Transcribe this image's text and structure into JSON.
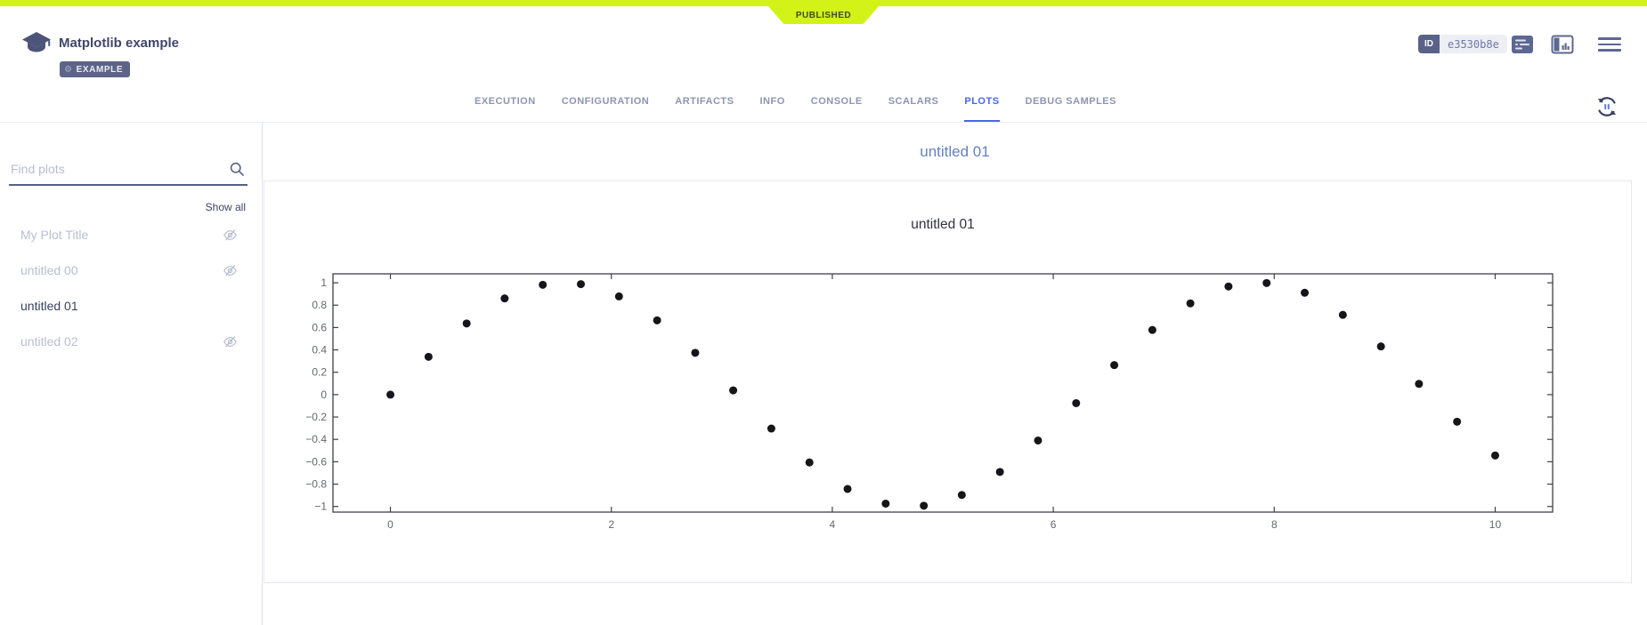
{
  "status_ribbon": {
    "label": "PUBLISHED"
  },
  "header": {
    "title": "Matplotlib example",
    "badge": {
      "label": "EXAMPLE"
    },
    "id_chip": {
      "label": "ID",
      "value": "e3530b8e"
    }
  },
  "tabs": {
    "items": [
      {
        "label": "EXECUTION",
        "active": false
      },
      {
        "label": "CONFIGURATION",
        "active": false
      },
      {
        "label": "ARTIFACTS",
        "active": false
      },
      {
        "label": "INFO",
        "active": false
      },
      {
        "label": "CONSOLE",
        "active": false
      },
      {
        "label": "SCALARS",
        "active": false
      },
      {
        "label": "PLOTS",
        "active": true
      },
      {
        "label": "DEBUG SAMPLES",
        "active": false
      }
    ]
  },
  "sidebar": {
    "search": {
      "placeholder": "Find plots",
      "value": ""
    },
    "show_all_label": "Show all",
    "items": [
      {
        "label": "My Plot Title",
        "hidden": true,
        "active": false
      },
      {
        "label": "untitled 00",
        "hidden": true,
        "active": false
      },
      {
        "label": "untitled 01",
        "hidden": false,
        "active": true
      },
      {
        "label": "untitled 02",
        "hidden": true,
        "active": false
      }
    ]
  },
  "main": {
    "section_heading": "untitled 01"
  },
  "chart_data": {
    "type": "scatter",
    "title": "untitled 01",
    "xlabel": "",
    "ylabel": "",
    "x": [
      0,
      0.345,
      0.69,
      1.034,
      1.379,
      1.724,
      2.069,
      2.414,
      2.759,
      3.103,
      3.448,
      3.793,
      4.138,
      4.483,
      4.828,
      5.172,
      5.517,
      5.862,
      6.207,
      6.552,
      6.897,
      7.241,
      7.586,
      7.931,
      8.276,
      8.621,
      8.966,
      9.31,
      9.655,
      10.0
    ],
    "y": [
      0,
      0.338,
      0.636,
      0.86,
      0.982,
      0.988,
      0.878,
      0.664,
      0.374,
      0.038,
      -0.303,
      -0.606,
      -0.843,
      -0.974,
      -0.993,
      -0.897,
      -0.691,
      -0.41,
      -0.076,
      0.264,
      0.578,
      0.816,
      0.967,
      0.998,
      0.911,
      0.713,
      0.431,
      0.096,
      -0.242,
      -0.544
    ],
    "xticks": [
      0,
      2,
      4,
      6,
      8,
      10
    ],
    "yticks": [
      1,
      0.8,
      0.6,
      0.4,
      0.2,
      0,
      -0.2,
      -0.4,
      -0.6,
      -0.8,
      -1
    ],
    "xlim": [
      -0.52,
      10.52
    ],
    "ylim": [
      -1.05,
      1.08
    ],
    "grid": false,
    "legend": false,
    "marker_color": "#15151a",
    "frame_color": "#3f3f4a",
    "tick_label_color": "#63666d"
  },
  "colors": {
    "status_neon": "#d2f218",
    "active_tab_blue": "#4a65e8",
    "slate": "#5d6487",
    "heading_blue": "#6282c4"
  }
}
